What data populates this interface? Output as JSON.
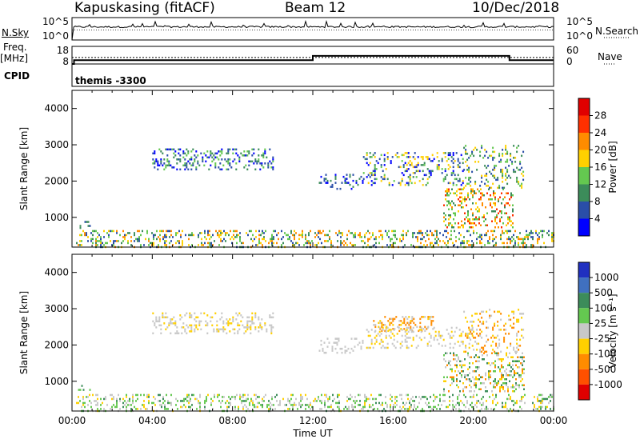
{
  "header": {
    "site": "Kapuskasing (fitACF)",
    "beam": "Beam 12",
    "date": "10/Dec/2018"
  },
  "left_labels": {
    "nsky": "N.Sky",
    "freq_top": "Freq.",
    "freq_unit": "[MHz]",
    "cpid": "CPID"
  },
  "right_labels": {
    "nsearch": "N.Search",
    "nave": "Nave"
  },
  "cpid_text": "themis -3300",
  "colors": {
    "bg": "#ffffff",
    "axis": "#000000"
  },
  "chart_data": [
    {
      "type": "line",
      "name": "noise",
      "ylabel": "N.Sky",
      "y_ticks": [
        "10^5",
        "10^0"
      ],
      "y2_ticks": [
        "10^5",
        "10^0"
      ],
      "y2label": "N.Search",
      "x_range": [
        0,
        24
      ],
      "level": 0.55
    },
    {
      "type": "line",
      "name": "frequency",
      "ylabel": "Freq. [MHz]",
      "y_ticks": [
        "18",
        "8"
      ],
      "y2_ticks": [
        "60",
        "0"
      ],
      "y2label": "Nave",
      "x_range": [
        0,
        24
      ],
      "series": [
        {
          "x": [
            0.0,
            0.1,
            0.1,
            12.0,
            12.0,
            21.8,
            21.8,
            24.0
          ],
          "y": [
            8,
            8,
            10.2,
            10.2,
            12.6,
            12.6,
            10.2,
            10.2
          ]
        }
      ],
      "dotted_level": 11.7,
      "ylim": [
        8,
        18
      ]
    },
    {
      "type": "heatmap",
      "name": "power",
      "ylabel": "Slant Range [km]",
      "y_ticks": [
        1000,
        2000,
        3000,
        4000
      ],
      "ylim": [
        180,
        4500
      ],
      "x_range": [
        0,
        24
      ],
      "colorbar_label": "Power [dB]",
      "colorbar_ticks": [
        "4",
        "8",
        "12",
        "16",
        "20",
        "24",
        "28"
      ],
      "colorbar_colors": [
        "#0000ff",
        "#2a4ea8",
        "#3c8c5a",
        "#64c850",
        "#ffd000",
        "#ff8c00",
        "#ff3000",
        "#e00000"
      ],
      "regions": [
        {
          "t0": 0.2,
          "t1": 24.0,
          "r0": 200,
          "r1": 650,
          "density": 0.6,
          "c": [
            1,
            2,
            3,
            4,
            5
          ]
        },
        {
          "t0": 0.3,
          "t1": 0.9,
          "r0": 700,
          "r1": 900,
          "density": 0.4,
          "c": [
            1,
            2
          ]
        },
        {
          "t0": 4.0,
          "t1": 10.0,
          "r0": 2300,
          "r1": 2900,
          "density": 0.55,
          "c": [
            0,
            1,
            2,
            3
          ]
        },
        {
          "t0": 12.3,
          "t1": 14.5,
          "r0": 1800,
          "r1": 2200,
          "density": 0.4,
          "c": [
            0,
            1,
            2
          ]
        },
        {
          "t0": 14.5,
          "t1": 19.5,
          "r0": 1900,
          "r1": 2800,
          "density": 0.45,
          "c": [
            0,
            1,
            2,
            3,
            4
          ]
        },
        {
          "t0": 18.5,
          "t1": 22.0,
          "r0": 700,
          "r1": 1800,
          "density": 0.6,
          "c": [
            2,
            3,
            4,
            5,
            6
          ]
        },
        {
          "t0": 19.5,
          "t1": 22.5,
          "r0": 1800,
          "r1": 3000,
          "density": 0.4,
          "c": [
            1,
            2,
            3,
            4
          ]
        }
      ]
    },
    {
      "type": "heatmap",
      "name": "velocity",
      "ylabel": "Slant Range [km]",
      "y_ticks": [
        1000,
        2000,
        3000,
        4000
      ],
      "ylim": [
        180,
        4500
      ],
      "x_range": [
        0,
        24
      ],
      "xlabel": "Time UT",
      "x_ticks": [
        "00:00",
        "04:00",
        "08:00",
        "12:00",
        "16:00",
        "20:00",
        "00:00"
      ],
      "colorbar_label": "Velocity [m s⁻¹]",
      "colorbar_ticks": [
        "1000",
        "500",
        "100",
        "25",
        "-25",
        "-100",
        "-500",
        "-1000"
      ],
      "colorbar_colors": [
        "#2030c0",
        "#4070c0",
        "#3c8c5a",
        "#64c850",
        "#c8c8c8",
        "#ffd000",
        "#ff8c00",
        "#ff5000",
        "#e00000"
      ],
      "regions": [
        {
          "t0": 0.2,
          "t1": 24.0,
          "r0": 200,
          "r1": 650,
          "density": 0.55,
          "c": [
            2,
            3,
            4,
            5,
            4,
            3
          ]
        },
        {
          "t0": 0.3,
          "t1": 0.9,
          "r0": 700,
          "r1": 900,
          "density": 0.4,
          "c": [
            2,
            3
          ]
        },
        {
          "t0": 4.0,
          "t1": 10.0,
          "r0": 2300,
          "r1": 2900,
          "density": 0.55,
          "c": [
            4,
            4,
            4,
            5
          ]
        },
        {
          "t0": 12.3,
          "t1": 14.5,
          "r0": 1800,
          "r1": 2200,
          "density": 0.4,
          "c": [
            4,
            4
          ]
        },
        {
          "t0": 15.0,
          "t1": 18.0,
          "r0": 2400,
          "r1": 2800,
          "density": 0.55,
          "c": [
            6,
            6,
            5,
            4
          ]
        },
        {
          "t0": 14.5,
          "t1": 20.0,
          "r0": 1900,
          "r1": 2500,
          "density": 0.45,
          "c": [
            4,
            4,
            5
          ]
        },
        {
          "t0": 18.5,
          "t1": 22.5,
          "r0": 700,
          "r1": 1800,
          "density": 0.6,
          "c": [
            2,
            3,
            4,
            5,
            4,
            6
          ]
        },
        {
          "t0": 19.5,
          "t1": 22.5,
          "r0": 1800,
          "r1": 3000,
          "density": 0.35,
          "c": [
            4,
            5,
            6
          ]
        }
      ]
    }
  ]
}
